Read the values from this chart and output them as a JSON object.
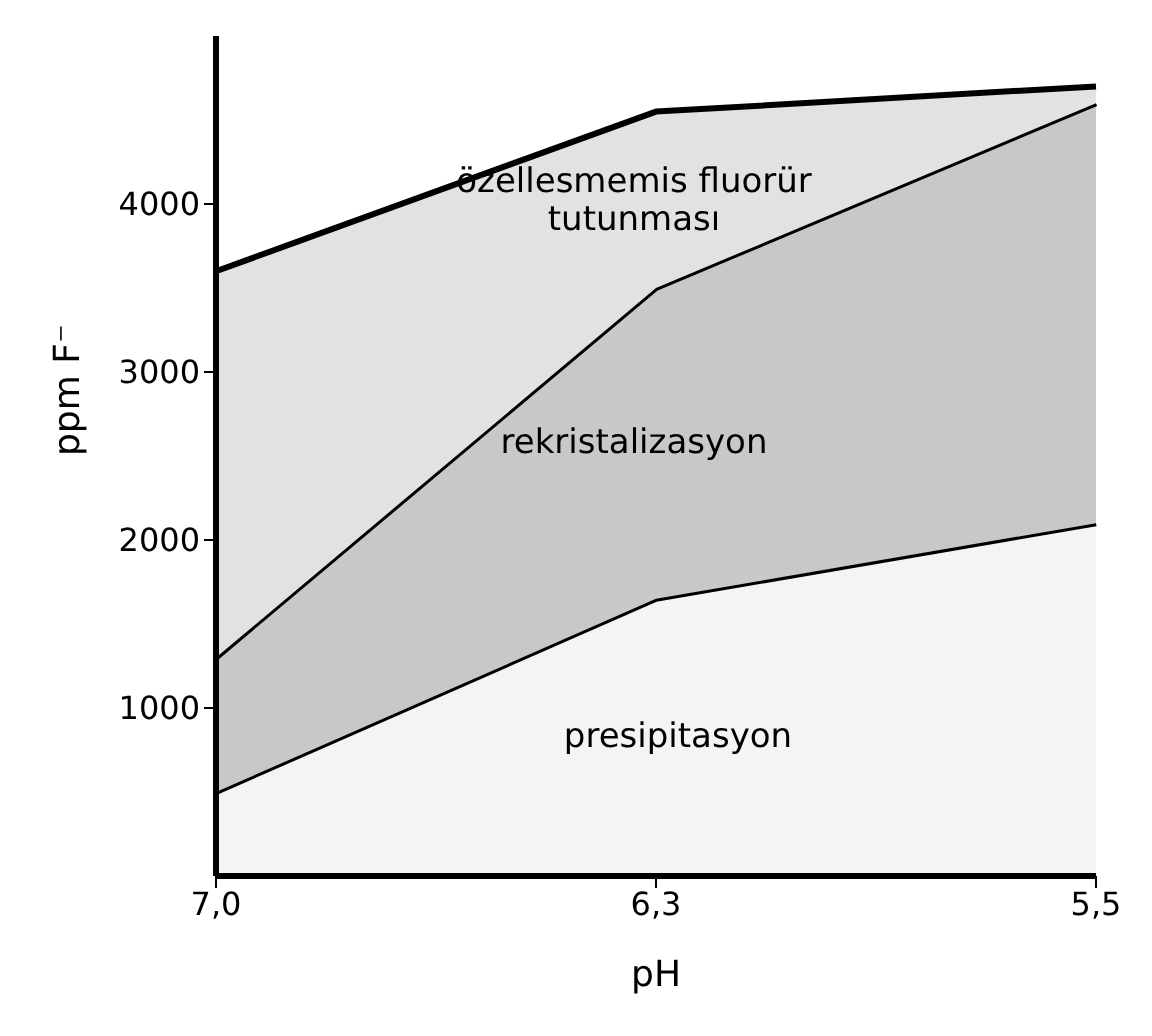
{
  "chart_data": {
    "type": "area",
    "stacked": true,
    "xlabel": "pH",
    "ylabel": "ppm F⁻",
    "categories": [
      "7,0",
      "6,3",
      "5,5"
    ],
    "ylim": [
      0,
      5000
    ],
    "yticks": [
      1000,
      2000,
      3000,
      4000
    ],
    "grid": false,
    "legend": false,
    "series": [
      {
        "name": "presipitasyon",
        "color": "#f4f4f4",
        "values": [
          500,
          1650,
          2100
        ]
      },
      {
        "name": "rekristalizasyon",
        "color": "#c8c8c8",
        "values": [
          800,
          1850,
          2500
        ]
      },
      {
        "name": "özellesmemis fluorür tutunması",
        "color": "#e2e2e2",
        "values": [
          2300,
          1050,
          100
        ]
      }
    ]
  }
}
